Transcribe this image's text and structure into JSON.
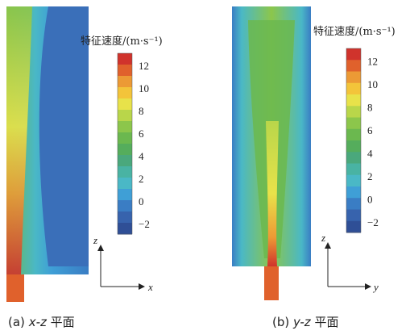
{
  "panel_a": {
    "colorbar_title": "特征速度/(m·s⁻¹)",
    "colorbar_ticks": [
      "12",
      "10",
      "8",
      "6",
      "4",
      "2",
      "0",
      "−2"
    ],
    "axis_vertical": "z",
    "axis_horizontal": "x",
    "caption_prefix": "(a)",
    "caption_var": "x-z",
    "caption_suffix": "平面"
  },
  "panel_b": {
    "colorbar_title": "特征速度/(m·s⁻¹)",
    "colorbar_ticks": [
      "12",
      "10",
      "8",
      "6",
      "4",
      "2",
      "0",
      "−2"
    ],
    "axis_vertical": "z",
    "axis_horizontal": "y",
    "caption_prefix": "(b)",
    "caption_var": "y-z",
    "caption_suffix": "平面"
  },
  "colorbar_colors": [
    "#d0332c",
    "#e0612c",
    "#ec9a35",
    "#f3c43a",
    "#e8e24a",
    "#b9d64a",
    "#8cc64b",
    "#6bb84f",
    "#55ad5c",
    "#4aa87c",
    "#49b3a3",
    "#4ab8c6",
    "#3f9fd6",
    "#3a7dc4",
    "#3763ad",
    "#2f4f96"
  ]
}
